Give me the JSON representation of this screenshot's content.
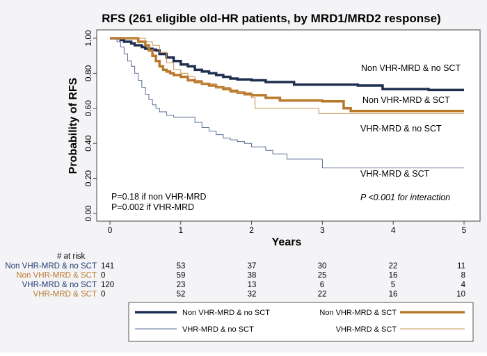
{
  "chart_data": {
    "type": "line",
    "title": "RFS (261 eligible old-HR patients, by MRD1/MRD2 response)",
    "xlabel": "Years",
    "ylabel": "Probability of RFS",
    "xlim": [
      0,
      5
    ],
    "ylim": [
      0,
      1
    ],
    "x_ticks": [
      "0",
      "1",
      "2",
      "3",
      "4",
      "5"
    ],
    "y_ticks": [
      "0.00",
      "0.20",
      "0.40",
      "0.60",
      "0.80",
      "1.00"
    ],
    "grid": false,
    "legend_position": "bottom",
    "series": [
      {
        "name": "Non VHR-MRD & no SCT",
        "color": "#1f2f4f",
        "width": 3.5,
        "end_label": "Non VHR-MRD & no SCT",
        "x": [
          0,
          0.15,
          0.2,
          0.3,
          0.35,
          0.45,
          0.5,
          0.6,
          0.65,
          0.7,
          0.8,
          0.9,
          1.0,
          1.1,
          1.2,
          1.3,
          1.4,
          1.5,
          1.6,
          1.7,
          1.8,
          2.0,
          2.2,
          2.6,
          3.0,
          3.5,
          3.85,
          4.5,
          5.0
        ],
        "y": [
          1.0,
          0.99,
          0.98,
          0.97,
          0.96,
          0.95,
          0.94,
          0.935,
          0.93,
          0.91,
          0.89,
          0.87,
          0.85,
          0.84,
          0.82,
          0.81,
          0.8,
          0.79,
          0.78,
          0.77,
          0.765,
          0.76,
          0.75,
          0.735,
          0.735,
          0.73,
          0.71,
          0.705,
          0.705
        ]
      },
      {
        "name": "Non VHR-MRD & SCT",
        "color": "#b8792a",
        "width": 3.5,
        "end_label": "Non VHR-MRD & SCT",
        "x": [
          0,
          0.4,
          0.5,
          0.55,
          0.6,
          0.65,
          0.7,
          0.75,
          0.8,
          0.85,
          0.9,
          1.0,
          1.1,
          1.2,
          1.3,
          1.4,
          1.5,
          1.6,
          1.7,
          1.8,
          1.9,
          2.0,
          2.2,
          2.4,
          3.0,
          3.3,
          3.4,
          4.0,
          5.0
        ],
        "y": [
          1.0,
          0.98,
          0.96,
          0.93,
          0.9,
          0.87,
          0.84,
          0.82,
          0.81,
          0.8,
          0.79,
          0.78,
          0.76,
          0.75,
          0.74,
          0.73,
          0.72,
          0.71,
          0.7,
          0.69,
          0.68,
          0.675,
          0.66,
          0.645,
          0.64,
          0.6,
          0.585,
          0.585,
          0.585
        ]
      },
      {
        "name": "VHR-MRD & no SCT",
        "color": "#5a6a95",
        "width": 1,
        "end_label": "VHR-MRD & no SCT",
        "x": [
          0,
          0.1,
          0.15,
          0.2,
          0.25,
          0.3,
          0.35,
          0.4,
          0.45,
          0.5,
          0.55,
          0.6,
          0.65,
          0.7,
          0.8,
          0.9,
          1.0,
          1.2,
          1.3,
          1.4,
          1.5,
          1.6,
          1.7,
          1.8,
          1.9,
          2.0,
          2.2,
          2.3,
          2.5,
          3.0,
          5.0
        ],
        "y": [
          1.0,
          0.98,
          0.95,
          0.91,
          0.87,
          0.84,
          0.8,
          0.76,
          0.72,
          0.68,
          0.65,
          0.62,
          0.6,
          0.58,
          0.56,
          0.55,
          0.55,
          0.52,
          0.49,
          0.47,
          0.45,
          0.43,
          0.42,
          0.41,
          0.4,
          0.38,
          0.36,
          0.34,
          0.31,
          0.26,
          0.26
        ]
      },
      {
        "name": "VHR-MRD & SCT",
        "color": "#c99150",
        "width": 1,
        "end_label": "VHR-MRD & SCT",
        "x": [
          0,
          0.5,
          0.6,
          0.7,
          0.8,
          0.9,
          1.0,
          1.1,
          1.2,
          1.3,
          1.5,
          1.7,
          2.0,
          2.05,
          2.9,
          2.95,
          3.5,
          5.0
        ],
        "y": [
          1.0,
          0.98,
          0.96,
          0.92,
          0.86,
          0.82,
          0.8,
          0.78,
          0.76,
          0.74,
          0.72,
          0.69,
          0.66,
          0.6,
          0.6,
          0.57,
          0.57,
          0.57
        ]
      }
    ],
    "annotations": [
      "P=0.18 if non VHR-MRD",
      "P=0.002 if VHR-MRD",
      "P <0.001 for interaction"
    ],
    "risk_table": {
      "header": "# at risk",
      "rows": [
        {
          "label": "Non VHR-MRD & no SCT",
          "color": "#1f3a6e",
          "values": [
            "141",
            "53",
            "37",
            "30",
            "22",
            "11"
          ]
        },
        {
          "label": "Non VHR-MRD & SCT",
          "color": "#b8792a",
          "values": [
            "0",
            "59",
            "38",
            "25",
            "16",
            "8"
          ]
        },
        {
          "label": "VHR-MRD & no SCT",
          "color": "#1f3a6e",
          "values": [
            "120",
            "23",
            "13",
            "6",
            "5",
            "4"
          ]
        },
        {
          "label": "VHR-MRD & SCT",
          "color": "#b8792a",
          "values": [
            "0",
            "52",
            "32",
            "22",
            "16",
            "10"
          ]
        }
      ]
    }
  }
}
